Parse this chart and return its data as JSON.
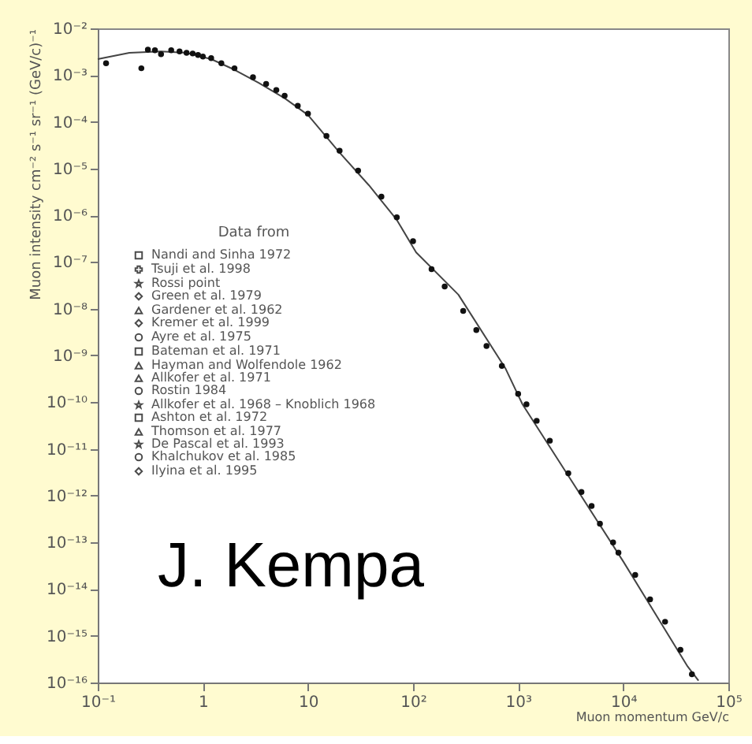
{
  "chart_data": {
    "type": "scatter",
    "xlabel": "Muon momentum GeV/c",
    "ylabel": "Muon intensity cm⁻² s⁻¹ sr⁻¹ (GeV/c)⁻¹",
    "legend_title": "Data from",
    "log": "xy",
    "xlim": [
      0.1,
      100000
    ],
    "ylim": [
      1e-16,
      0.01
    ],
    "xticks": [
      {
        "value": 0.1,
        "label": "10⁻¹"
      },
      1,
      10,
      {
        "value": 100,
        "label": "10²"
      },
      {
        "value": 1000,
        "label": "10³"
      },
      {
        "value": 10000,
        "label": "10⁴"
      },
      {
        "value": 100000,
        "label": "10⁵"
      }
    ],
    "yticks": [
      {
        "value": 1e-16,
        "label": "10⁻¹⁶"
      },
      {
        "value": 1e-15,
        "label": "10⁻¹⁵"
      },
      {
        "value": 1e-14,
        "label": "10⁻¹⁴"
      },
      {
        "value": 1e-13,
        "label": "10⁻¹³"
      },
      {
        "value": 1e-12,
        "label": "10⁻¹²"
      },
      {
        "value": 1e-11,
        "label": "10⁻¹¹"
      },
      {
        "value": 1e-10,
        "label": "10⁻¹⁰"
      },
      {
        "value": 1e-09,
        "label": "10⁻⁹"
      },
      {
        "value": 1e-08,
        "label": "10⁻⁸"
      },
      {
        "value": 1e-07,
        "label": "10⁻⁷"
      },
      {
        "value": 1e-06,
        "label": "10⁻⁶"
      },
      {
        "value": 1e-05,
        "label": "10⁻⁵"
      },
      {
        "value": 0.0001,
        "label": "10⁻⁴"
      },
      {
        "value": 0.001,
        "label": "10⁻³"
      },
      {
        "value": 0.01,
        "label": "10⁻²"
      }
    ],
    "grid": false,
    "legend": "left",
    "annotations": [
      "J. Kempa"
    ],
    "series": [
      {
        "type": "line",
        "color": "#444444",
        "marker": "none",
        "line_style": "solid",
        "x": [
          0.1,
          0.2,
          0.4,
          0.7,
          1.2,
          2,
          3.4,
          6,
          10,
          20,
          38,
          70,
          107,
          270,
          760,
          1100,
          3300,
          10000,
          41000,
          52000
        ],
        "values": [
          0.0022,
          0.003,
          0.0032,
          0.003,
          0.0022,
          0.0013,
          0.00068,
          0.00032,
          0.00014,
          2.2e-05,
          4.4e-06,
          8e-07,
          1.6e-07,
          2e-08,
          5.2e-10,
          9e-11,
          1.9e-12,
          3.9e-14,
          2.2e-16,
          1.1e-16
        ]
      },
      {
        "color": "#111111",
        "marker": "circle",
        "x": [
          0.12,
          0.26,
          0.3,
          0.35,
          0.4,
          0.5,
          0.6,
          0.7,
          0.8,
          0.9,
          1.0,
          1.2,
          1.5,
          2,
          3,
          4,
          5,
          6,
          8,
          10,
          15,
          20,
          30,
          50,
          70,
          100,
          150,
          200,
          300,
          400,
          500,
          700,
          1000,
          1200,
          1500,
          2000,
          3000,
          4000,
          5000,
          6000,
          8000,
          9000,
          13000,
          18000,
          25000,
          35000,
          45000
        ],
        "values": [
          0.0018,
          0.0014,
          0.0035,
          0.0034,
          0.0028,
          0.0034,
          0.0032,
          0.003,
          0.0029,
          0.0027,
          0.0025,
          0.0023,
          0.0018,
          0.0014,
          0.0009,
          0.00065,
          0.00048,
          0.00036,
          0.00022,
          0.00015,
          5e-05,
          2.4e-05,
          9e-06,
          2.5e-06,
          9e-07,
          2.8e-07,
          7e-08,
          3e-08,
          9e-09,
          3.5e-09,
          1.6e-09,
          6e-10,
          1.5e-10,
          9e-11,
          4e-11,
          1.5e-11,
          3e-12,
          1.2e-12,
          6e-13,
          2.5e-13,
          1e-13,
          6e-14,
          2e-14,
          6e-15,
          2e-15,
          5e-16,
          1.5e-16
        ]
      },
      {
        "name": "Nandi and Sinha 1972",
        "marker": "square",
        "color": "#000000"
      },
      {
        "name": "Tsuji et al. 1998",
        "marker": "cross",
        "color": "#000000"
      },
      {
        "name": "Rossi point",
        "marker": "star",
        "color": "#000000"
      },
      {
        "name": "Green et al. 1979",
        "marker": "diamond",
        "color": "#000000"
      },
      {
        "name": "Gardener et al. 1962",
        "marker": "triangle",
        "color": "#000000"
      },
      {
        "name": "Kremer et al. 1999",
        "marker": "diamond",
        "color": "#000000"
      },
      {
        "name": "Ayre et al. 1975",
        "marker": "circle",
        "color": "#000000"
      },
      {
        "name": "Bateman et al. 1971",
        "marker": "square",
        "color": "#000000"
      },
      {
        "name": "Hayman and Wolfendole 1962",
        "marker": "triangle",
        "color": "#000000"
      },
      {
        "name": "Allkofer et al. 1971",
        "marker": "triangle",
        "color": "#000000"
      },
      {
        "name": "Rostin 1984",
        "marker": "circle",
        "color": "#000000"
      },
      {
        "name": "Allkofer et al. 1968 – Knoblich 1968",
        "marker": "star",
        "color": "#000000"
      },
      {
        "name": "Ashton et al. 1972",
        "marker": "square",
        "color": "#000000"
      },
      {
        "name": "Thomson et al. 1977",
        "marker": "triangle",
        "color": "#000000"
      },
      {
        "name": "De Pascal et al. 1993",
        "marker": "star",
        "color": "#000000"
      },
      {
        "name": "Khalchukov et al. 1985",
        "marker": "circle",
        "color": "#000000"
      },
      {
        "name": "Ilyina et al. 1995",
        "marker": "diamond",
        "color": "#000000"
      }
    ]
  }
}
